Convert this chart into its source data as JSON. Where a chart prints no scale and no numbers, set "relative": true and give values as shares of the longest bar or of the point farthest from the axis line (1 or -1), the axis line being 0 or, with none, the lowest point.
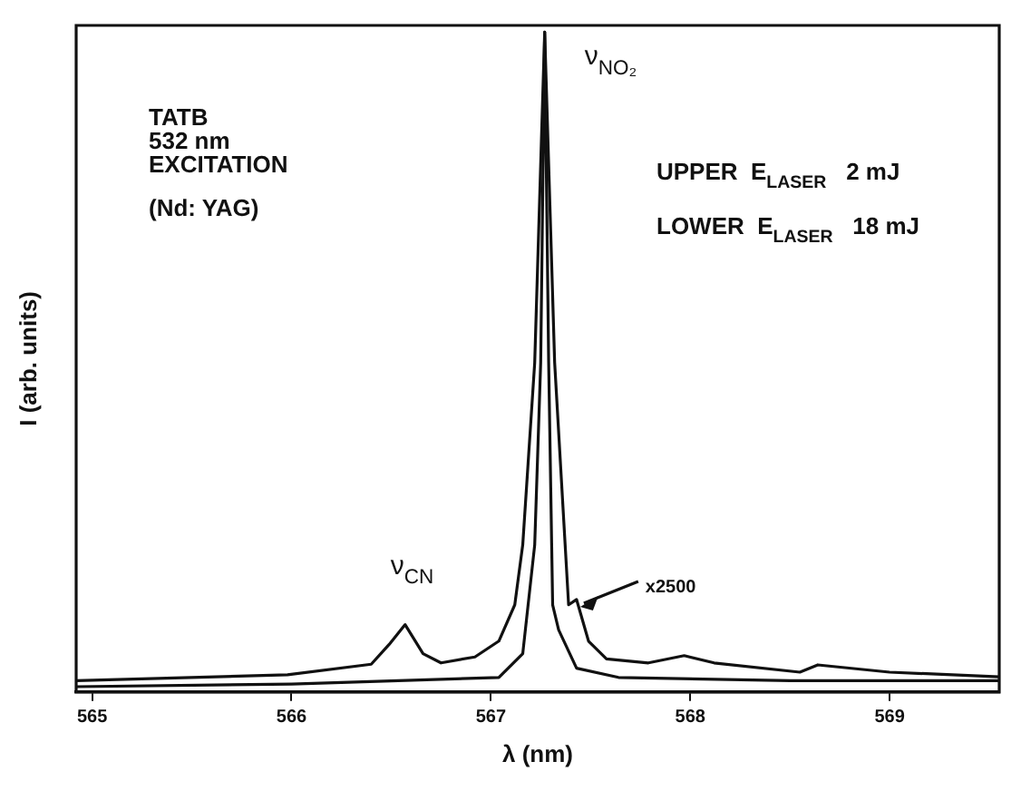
{
  "chart_data": {
    "type": "line",
    "xlabel": "λ (nm)",
    "ylabel": "I (arb. units)",
    "relative": true,
    "grid": false,
    "legend": false,
    "marker": "none",
    "line_style": "solid",
    "xlim": [
      564.92,
      569.55
    ],
    "xticks": [
      565,
      566,
      567,
      568,
      569
    ],
    "series": [
      {
        "color": "#111111",
        "x": [
          564.92,
          565.98,
          566.4,
          566.49,
          566.57,
          566.66,
          566.75,
          566.92,
          567.04,
          567.12,
          567.16,
          567.19,
          567.22,
          567.27,
          567.32,
          567.39,
          567.43,
          567.49,
          567.58,
          567.79,
          567.97,
          568.12,
          568.55,
          568.64,
          569.0,
          569.55
        ],
        "values": [
          0.017,
          0.026,
          0.042,
          0.072,
          0.102,
          0.058,
          0.044,
          0.053,
          0.077,
          0.132,
          0.223,
          0.361,
          0.499,
          1.0,
          0.499,
          0.132,
          0.14,
          0.077,
          0.05,
          0.044,
          0.055,
          0.044,
          0.03,
          0.041,
          0.03,
          0.023
        ]
      },
      {
        "color": "#111111",
        "x": [
          564.92,
          566.0,
          567.04,
          567.16,
          567.22,
          567.25,
          567.27,
          567.29,
          567.31,
          567.34,
          567.43,
          567.64,
          568.5,
          569.55
        ],
        "values": [
          0.008,
          0.012,
          0.022,
          0.058,
          0.223,
          0.499,
          1.0,
          0.499,
          0.132,
          0.094,
          0.036,
          0.022,
          0.017,
          0.017
        ]
      }
    ],
    "annotations": [
      "TATB\n532 nm\nEXCITATION",
      "(Nd: YAG)",
      "UPPER  E$_{LASER}$   2 mJ",
      "LOWER  E$_{LASER}$   18 mJ",
      {
        "text": "ν$_{NO₂}$",
        "x": 567.27,
        "y": 1.0
      },
      {
        "text": "ν$_{CN}$",
        "x": 566.57,
        "y": 0.102
      },
      {
        "text": "x2500",
        "x": 567.43,
        "y": 0.14
      }
    ]
  }
}
